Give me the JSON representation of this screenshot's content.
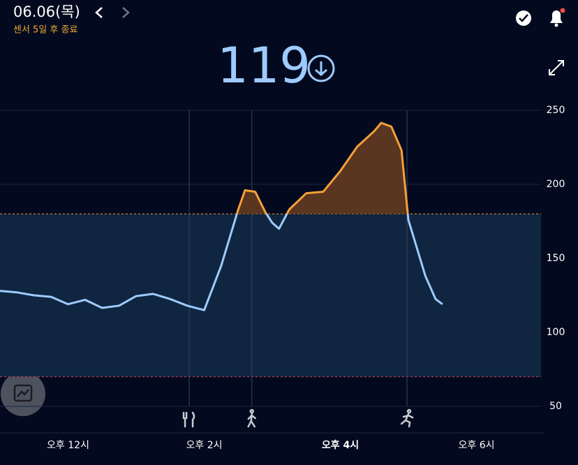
{
  "header": {
    "date": "06.06(목)",
    "sensor_note": "센서 5일 후 종료",
    "current": 119
  },
  "chart_data": {
    "type": "line",
    "x": [
      11.0,
      11.25,
      11.5,
      11.75,
      12.0,
      12.25,
      12.5,
      12.75,
      13.0,
      13.25,
      13.5,
      13.75,
      14.0,
      14.25,
      14.5,
      14.6,
      14.75,
      14.9,
      15.0,
      15.1,
      15.25,
      15.5,
      15.75,
      16.0,
      16.25,
      16.5,
      16.6,
      16.75,
      16.9,
      17.0,
      17.25,
      17.4,
      17.5
    ],
    "values": [
      128,
      127,
      125,
      124,
      119,
      122,
      116.5,
      118,
      124.5,
      126,
      122.5,
      118,
      115,
      145,
      183,
      196,
      195,
      181,
      174,
      170,
      183,
      194,
      195,
      209,
      225.5,
      236,
      241.5,
      239,
      223,
      176,
      138,
      122.5,
      119
    ],
    "color": "#9ecbff",
    "high_color": "#f5a03a",
    "target_range": [
      70,
      180
    ],
    "events_x": [
      13.78,
      14.7,
      16.98
    ],
    "xlim": [
      11,
      19
    ],
    "xticks": [
      {
        "value": 12,
        "label": "오후 12시"
      },
      {
        "value": 14,
        "label": "오후 2시"
      },
      {
        "value": 16,
        "label": "오후 4시"
      },
      {
        "value": 18,
        "label": "오후 6시"
      }
    ],
    "ylim": [
      50,
      250
    ],
    "yticks": [
      50,
      100,
      150,
      200,
      250
    ],
    "grid": true
  }
}
